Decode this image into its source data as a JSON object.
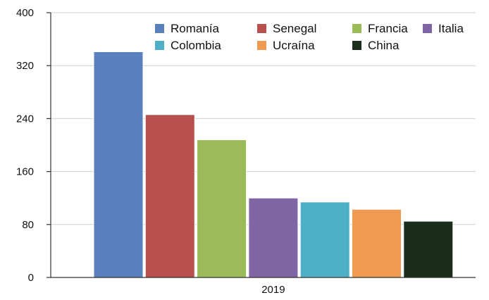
{
  "chart_data": {
    "type": "bar",
    "categories": [
      "2019"
    ],
    "series": [
      {
        "name": "Romanía",
        "values": [
          341
        ],
        "color": "#5a7fbd"
      },
      {
        "name": "Senegal",
        "values": [
          246
        ],
        "color": "#b8514d"
      },
      {
        "name": "Francia",
        "values": [
          208
        ],
        "color": "#9bbb59"
      },
      {
        "name": "Italia",
        "values": [
          120
        ],
        "color": "#7f65a3"
      },
      {
        "name": "Colombia",
        "values": [
          114
        ],
        "color": "#4fafc6"
      },
      {
        "name": "Ucraína",
        "values": [
          103
        ],
        "color": "#ef9a51"
      },
      {
        "name": "China",
        "values": [
          85
        ],
        "color": "#1a2e1b"
      }
    ],
    "y_ticks": [
      0,
      80,
      160,
      240,
      320,
      400
    ],
    "ylim": [
      0,
      400
    ],
    "grid": true,
    "legend_position": "top-right",
    "title": "",
    "xlabel": "",
    "ylabel": ""
  }
}
